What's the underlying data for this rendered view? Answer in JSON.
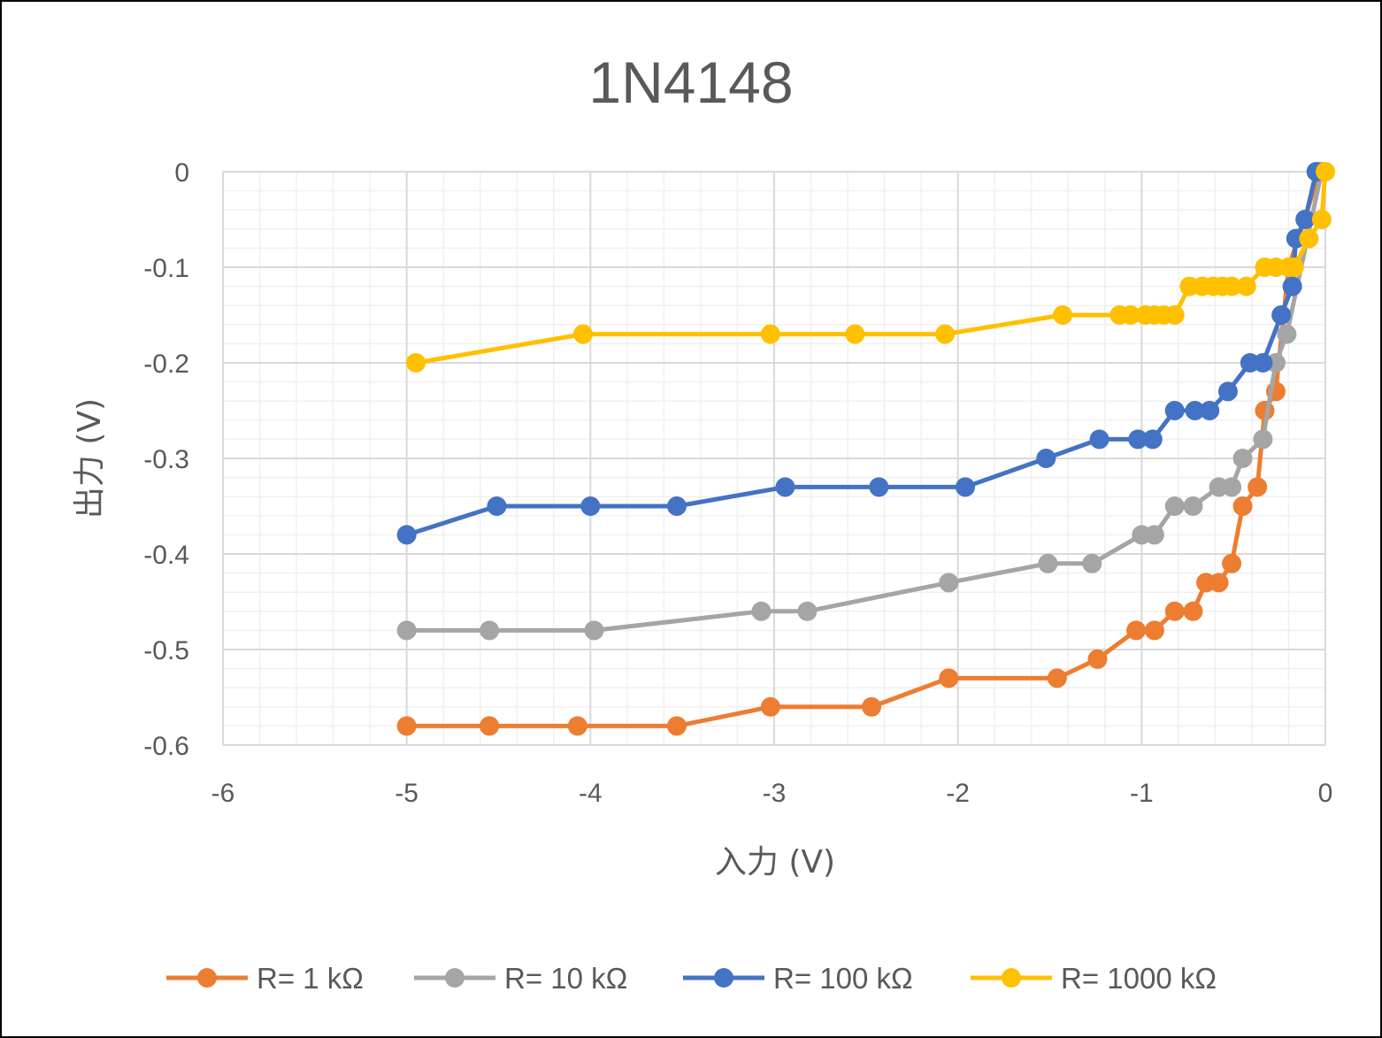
{
  "chart_data": {
    "type": "scatter",
    "title": "1N4148",
    "xlabel": "入力 (V)",
    "ylabel": "出力 (V)",
    "xlim": [
      -6,
      0
    ],
    "ylim": [
      -0.6,
      0
    ],
    "x_ticks": [
      "-6",
      "-5",
      "-4",
      "-3",
      "-2",
      "-1",
      "0"
    ],
    "y_ticks": [
      "0",
      "-0.1",
      "-0.2",
      "-0.3",
      "-0.4",
      "-0.5",
      "-0.6"
    ],
    "grid": true,
    "legend_position": "bottom",
    "series": [
      {
        "name": "R= 1 kΩ",
        "color": "#ED7D31",
        "points": [
          [
            -5.0,
            -0.58
          ],
          [
            -4.55,
            -0.58
          ],
          [
            -4.07,
            -0.58
          ],
          [
            -3.53,
            -0.58
          ],
          [
            -3.02,
            -0.56
          ],
          [
            -2.47,
            -0.56
          ],
          [
            -2.05,
            -0.53
          ],
          [
            -1.46,
            -0.53
          ],
          [
            -1.24,
            -0.51
          ],
          [
            -1.03,
            -0.48
          ],
          [
            -0.93,
            -0.48
          ],
          [
            -0.82,
            -0.46
          ],
          [
            -0.72,
            -0.46
          ],
          [
            -0.65,
            -0.43
          ],
          [
            -0.58,
            -0.43
          ],
          [
            -0.51,
            -0.41
          ],
          [
            -0.45,
            -0.35
          ],
          [
            -0.37,
            -0.33
          ],
          [
            -0.33,
            -0.25
          ],
          [
            -0.27,
            -0.23
          ],
          [
            -0.2,
            -0.1
          ],
          [
            -0.03,
            0.0
          ]
        ]
      },
      {
        "name": "R= 10 kΩ",
        "color": "#A5A5A5",
        "points": [
          [
            -5.0,
            -0.48
          ],
          [
            -4.55,
            -0.48
          ],
          [
            -3.98,
            -0.48
          ],
          [
            -3.07,
            -0.46
          ],
          [
            -2.82,
            -0.46
          ],
          [
            -2.05,
            -0.43
          ],
          [
            -1.51,
            -0.41
          ],
          [
            -1.27,
            -0.41
          ],
          [
            -1.0,
            -0.38
          ],
          [
            -0.93,
            -0.38
          ],
          [
            -0.82,
            -0.35
          ],
          [
            -0.72,
            -0.35
          ],
          [
            -0.58,
            -0.33
          ],
          [
            -0.51,
            -0.33
          ],
          [
            -0.45,
            -0.3
          ],
          [
            -0.34,
            -0.28
          ],
          [
            -0.27,
            -0.2
          ],
          [
            -0.21,
            -0.17
          ],
          [
            -0.02,
            0.0
          ]
        ]
      },
      {
        "name": "R= 100 kΩ",
        "color": "#4472C4",
        "points": [
          [
            -5.0,
            -0.38
          ],
          [
            -4.51,
            -0.35
          ],
          [
            -4.0,
            -0.35
          ],
          [
            -3.53,
            -0.35
          ],
          [
            -2.94,
            -0.33
          ],
          [
            -2.43,
            -0.33
          ],
          [
            -1.96,
            -0.33
          ],
          [
            -1.52,
            -0.3
          ],
          [
            -1.23,
            -0.28
          ],
          [
            -1.02,
            -0.28
          ],
          [
            -0.94,
            -0.28
          ],
          [
            -0.82,
            -0.25
          ],
          [
            -0.71,
            -0.25
          ],
          [
            -0.63,
            -0.25
          ],
          [
            -0.53,
            -0.23
          ],
          [
            -0.41,
            -0.2
          ],
          [
            -0.34,
            -0.2
          ],
          [
            -0.24,
            -0.15
          ],
          [
            -0.18,
            -0.12
          ],
          [
            -0.16,
            -0.07
          ],
          [
            -0.11,
            -0.05
          ],
          [
            -0.05,
            0.0
          ]
        ]
      },
      {
        "name": "R= 1000 kΩ",
        "color": "#FFC000",
        "points": [
          [
            -4.95,
            -0.2
          ],
          [
            -4.04,
            -0.17
          ],
          [
            -3.02,
            -0.17
          ],
          [
            -2.56,
            -0.17
          ],
          [
            -2.07,
            -0.17
          ],
          [
            -1.43,
            -0.15
          ],
          [
            -1.12,
            -0.15
          ],
          [
            -1.06,
            -0.15
          ],
          [
            -0.98,
            -0.15
          ],
          [
            -0.93,
            -0.15
          ],
          [
            -0.88,
            -0.15
          ],
          [
            -0.82,
            -0.15
          ],
          [
            -0.74,
            -0.12
          ],
          [
            -0.67,
            -0.12
          ],
          [
            -0.61,
            -0.12
          ],
          [
            -0.56,
            -0.12
          ],
          [
            -0.51,
            -0.12
          ],
          [
            -0.43,
            -0.12
          ],
          [
            -0.33,
            -0.1
          ],
          [
            -0.27,
            -0.1
          ],
          [
            -0.2,
            -0.1
          ],
          [
            -0.17,
            -0.1
          ],
          [
            -0.09,
            -0.07
          ],
          [
            -0.02,
            -0.05
          ],
          [
            0.0,
            0.0
          ]
        ]
      }
    ]
  }
}
